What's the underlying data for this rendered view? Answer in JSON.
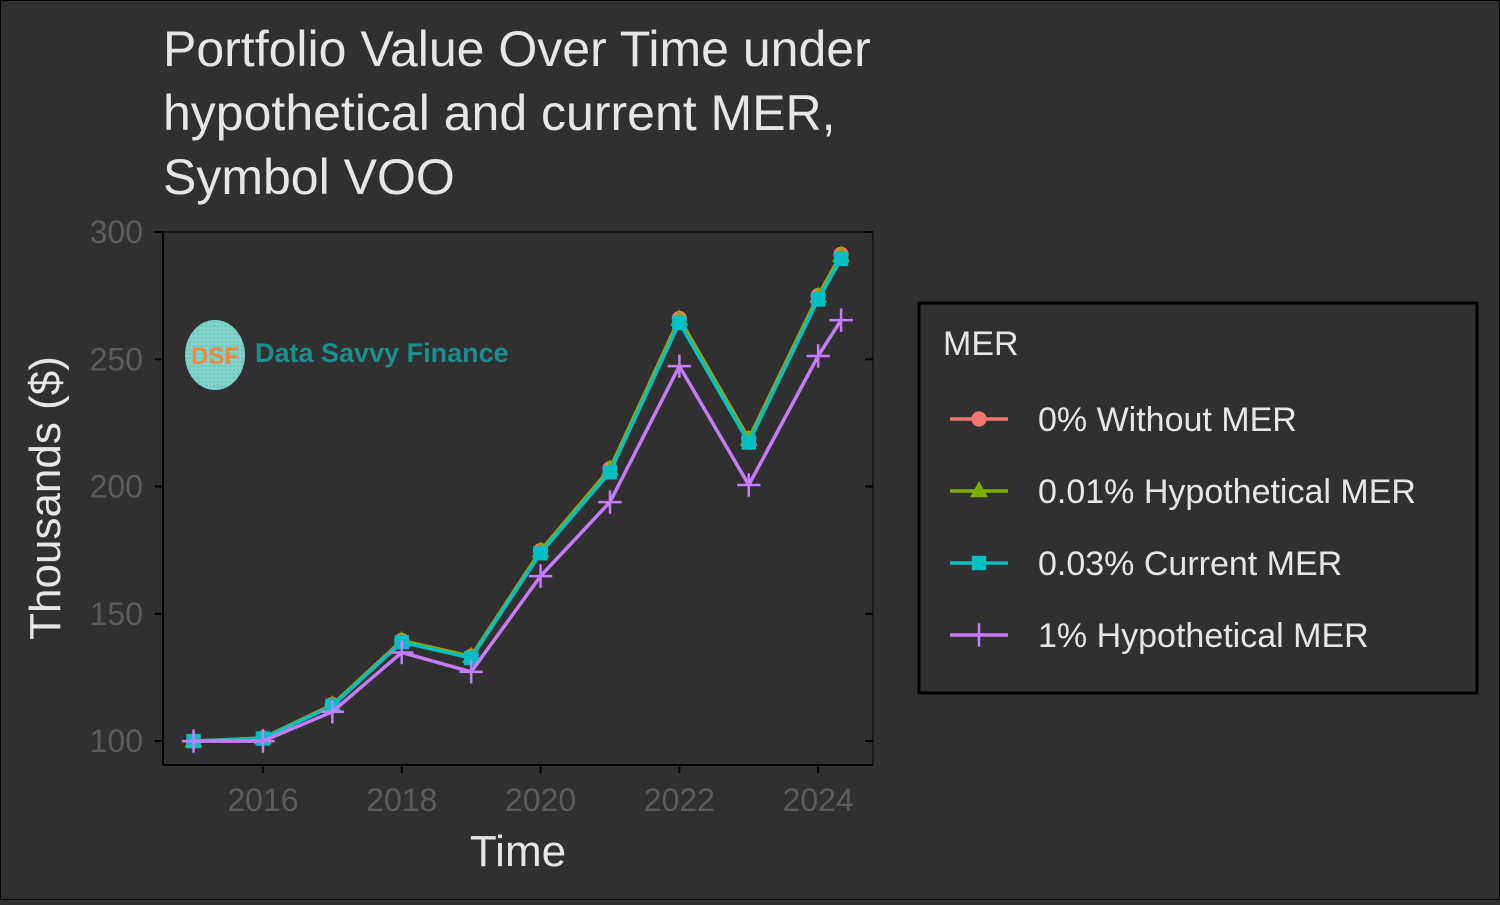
{
  "chart_data": {
    "type": "line",
    "title": [
      "Portfolio Value Over Time under",
      "hypothetical and current MER,",
      "Symbol VOO"
    ],
    "x_label": "Time",
    "y_label": "Thousands ($)",
    "logo": {
      "initials": "DSF",
      "name": "Data Savvy Finance"
    },
    "legend_title": "MER",
    "legend_position": "right",
    "x": [
      2015,
      2016,
      2017,
      2018,
      2019,
      2020,
      2021,
      2022,
      2023,
      2024,
      2024.33
    ],
    "xlim": [
      2014.56,
      2024.79
    ],
    "xticks": [
      2016,
      2018,
      2020,
      2022,
      2024
    ],
    "ylim": [
      90.6,
      300
    ],
    "yticks": [
      100,
      150,
      200,
      250,
      300
    ],
    "grid": false,
    "series": [
      {
        "name": "0% Without MER",
        "color": "#F8766D",
        "marker": "circle",
        "values": [
          100,
          101.2,
          114.3,
          139.5,
          133.3,
          174.8,
          207,
          266,
          218.8,
          275,
          291.2
        ]
      },
      {
        "name": "0.01% Hypothetical MER",
        "color": "#7CAE00",
        "marker": "triangle",
        "values": [
          100,
          101.2,
          114.2,
          139.4,
          133.2,
          174.6,
          206.8,
          265.7,
          218.5,
          274.7,
          290.8
        ]
      },
      {
        "name": "0.03% Current MER",
        "color": "#00BFC4",
        "marker": "square",
        "values": [
          100,
          101,
          113.8,
          138.8,
          132.6,
          173.8,
          205.6,
          264.3,
          217.3,
          273.5,
          289.4
        ]
      },
      {
        "name": "1% Hypothetical MER",
        "color": "#C77CFF",
        "marker": "plus",
        "values": [
          100,
          100,
          111.5,
          134.8,
          127.2,
          164.8,
          193.9,
          247.3,
          200.6,
          251.3,
          265.4
        ]
      }
    ]
  }
}
